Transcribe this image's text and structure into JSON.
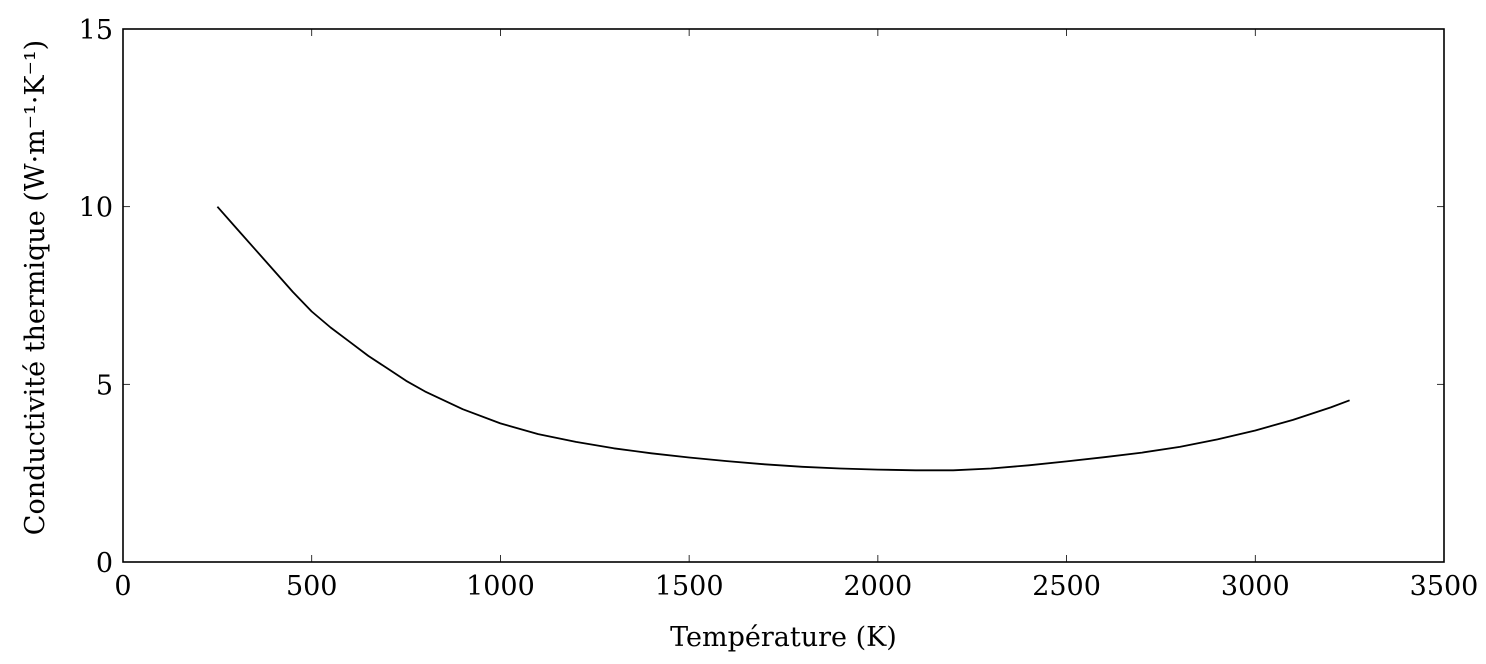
{
  "chart_data": {
    "type": "line",
    "title": "",
    "xlabel": "Température (K)",
    "ylabel": "Conductivité thermique (W·m⁻¹·K⁻¹)",
    "xlim": [
      0,
      3500
    ],
    "ylim": [
      0,
      15
    ],
    "xticks": [
      0,
      500,
      1000,
      1500,
      2000,
      2500,
      3000,
      3500
    ],
    "yticks": [
      0,
      5,
      10,
      15
    ],
    "grid": false,
    "series": [
      {
        "x": [
          250,
          300,
          350,
          400,
          450,
          500,
          550,
          600,
          650,
          700,
          750,
          800,
          900,
          1000,
          1100,
          1200,
          1300,
          1400,
          1500,
          1600,
          1700,
          1800,
          1900,
          2000,
          2100,
          2200,
          2300,
          2400,
          2500,
          2600,
          2700,
          2800,
          2900,
          3000,
          3100,
          3200,
          3250
        ],
        "y": [
          10.0,
          9.4,
          8.8,
          8.2,
          7.6,
          7.05,
          6.6,
          6.2,
          5.8,
          5.45,
          5.1,
          4.8,
          4.3,
          3.9,
          3.6,
          3.38,
          3.2,
          3.06,
          2.94,
          2.84,
          2.75,
          2.68,
          2.63,
          2.6,
          2.58,
          2.58,
          2.63,
          2.72,
          2.83,
          2.95,
          3.08,
          3.24,
          3.45,
          3.7,
          4.0,
          4.35,
          4.55
        ]
      }
    ]
  }
}
